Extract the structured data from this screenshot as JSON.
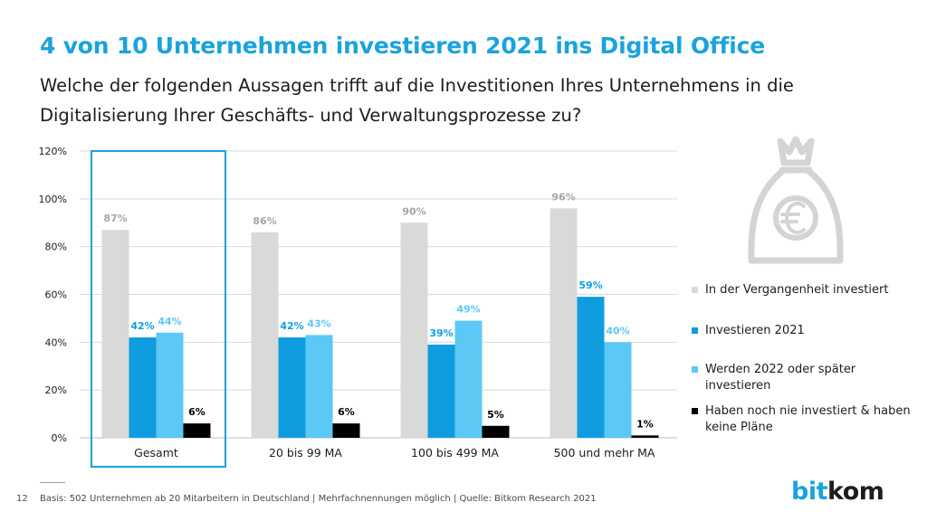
{
  "slide": {
    "title": "4 von 10 Unternehmen investieren 2021 ins Digital Office",
    "subtitle": "Welche der folgenden Aussagen trifft auf die Investitionen Ihres Unternehmens in die Digitalisierung Ihrer Geschäfts- und Verwaltungsprozesse zu?",
    "page_number": "12",
    "source": "Basis: 502 Unternehmen ab 20 Mitarbeitern in Deutschland | Mehrfachnennungen möglich | Quelle: Bitkom Research 2021",
    "logo": {
      "part1": "bit",
      "part2": "kom"
    },
    "icon": "money-bag-euro-icon"
  },
  "chart_data": {
    "type": "bar",
    "title": "4 von 10 Unternehmen investieren 2021 ins Digital Office",
    "xlabel": "",
    "ylabel": "",
    "ylim": [
      0,
      120
    ],
    "yticks": [
      0,
      20,
      40,
      60,
      80,
      100,
      120
    ],
    "ytick_suffix": "%",
    "grid": true,
    "legend_position": "right",
    "highlighted_category": "Gesamt",
    "categories": [
      "Gesamt",
      "20 bis 99 MA",
      "100 bis 499 MA",
      "500 und mehr MA"
    ],
    "series": [
      {
        "name": "In der Vergangenheit investiert",
        "color": "#d9d9d9",
        "label_color": "#a6a6a6",
        "values": [
          87,
          86,
          90,
          96
        ]
      },
      {
        "name": "Investieren 2021",
        "color": "#0f9ddf",
        "label_color": "#0f9ddf",
        "values": [
          42,
          42,
          39,
          59
        ]
      },
      {
        "name": "Werden 2022 oder später investieren",
        "color": "#5cc8f6",
        "label_color": "#5cc8f6",
        "values": [
          44,
          43,
          49,
          40
        ]
      },
      {
        "name": "Haben noch nie investiert & haben keine Pläne",
        "color": "#000000",
        "label_color": "#000000",
        "values": [
          6,
          6,
          5,
          1
        ]
      }
    ]
  }
}
